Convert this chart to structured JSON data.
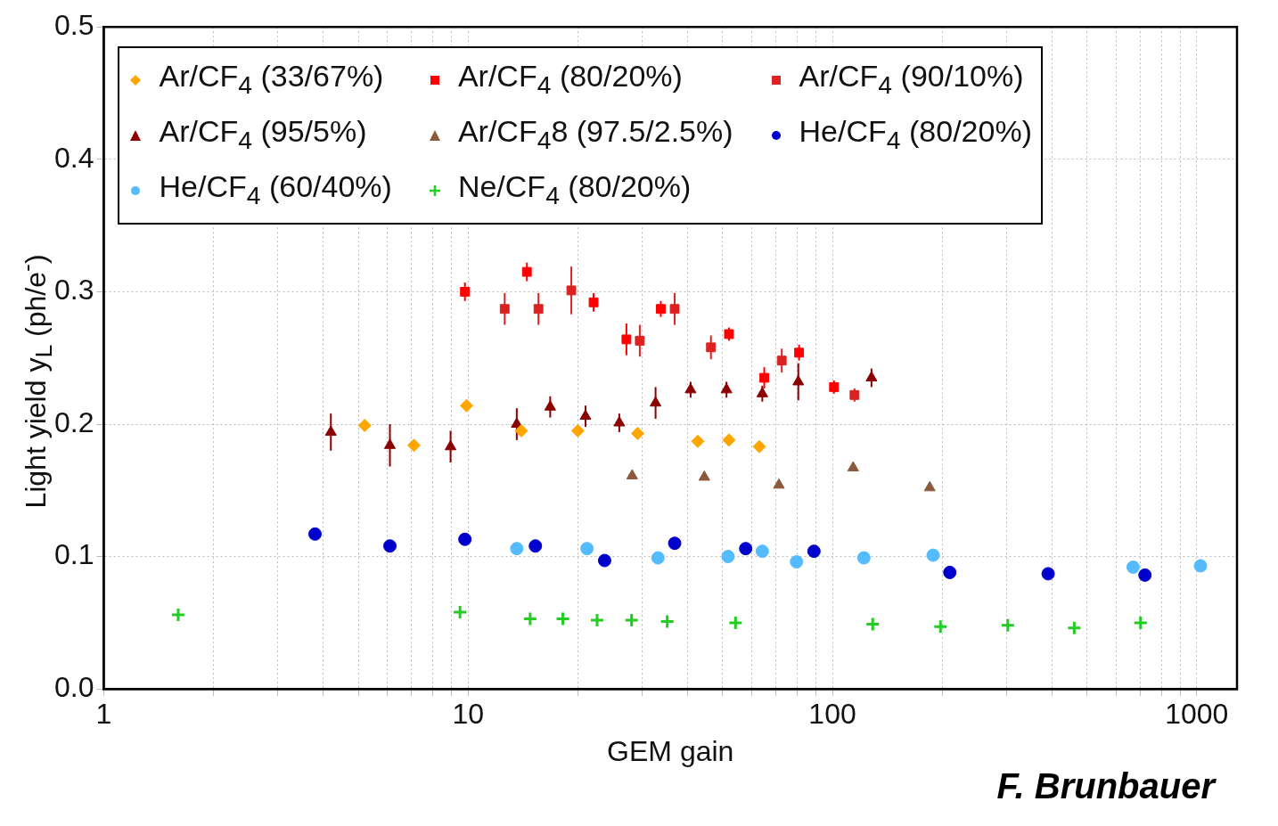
{
  "chart_data": {
    "type": "scatter",
    "xlabel": "GEM gain",
    "ylabel": "Light yield y$_{L}$ (ph/e$^{-}$)",
    "log": "x",
    "grid": true,
    "legend": "top",
    "xlim": [
      1,
      1290
    ],
    "xticks": [
      1,
      {
        "value": 2,
        "label": null
      },
      {
        "value": 3,
        "label": null
      },
      {
        "value": 4,
        "label": null
      },
      {
        "value": 5,
        "label": null
      },
      {
        "value": 6,
        "label": null
      },
      {
        "value": 7,
        "label": null
      },
      {
        "value": 8,
        "label": null
      },
      {
        "value": 9,
        "label": null
      },
      10,
      {
        "value": 20,
        "label": null
      },
      {
        "value": 30,
        "label": null
      },
      {
        "value": 40,
        "label": null
      },
      {
        "value": 50,
        "label": null
      },
      {
        "value": 60,
        "label": null
      },
      {
        "value": 70,
        "label": null
      },
      {
        "value": 80,
        "label": null
      },
      {
        "value": 90,
        "label": null
      },
      100,
      {
        "value": 200,
        "label": null
      },
      {
        "value": 300,
        "label": null
      },
      {
        "value": 400,
        "label": null
      },
      {
        "value": 500,
        "label": null
      },
      {
        "value": 600,
        "label": null
      },
      {
        "value": 700,
        "label": null
      },
      {
        "value": 800,
        "label": null
      },
      {
        "value": 900,
        "label": null
      },
      1000
    ],
    "ylim": [
      0,
      0.5
    ],
    "yticks": [
      {
        "value": 0,
        "label": "0.0"
      },
      0.1,
      0.2,
      0.3,
      0.4,
      0.5
    ],
    "annotations": [
      "F. Brunbauer"
    ],
    "series": [
      {
        "name": "Ar/CF$_{4}$ (33/67%)",
        "color": "#ffa500",
        "marker": "diamond",
        "x": [
          5.2,
          7.1,
          9.9,
          14.0,
          20,
          29.2,
          42.7,
          52,
          63
        ],
        "values": [
          0.199,
          0.184,
          0.214,
          0.195,
          0.195,
          0.193,
          0.187,
          0.188,
          0.183
        ]
      },
      {
        "name": "Ar/CF$_{4}$ (80/20%)",
        "color": "#ff0000",
        "marker": "square",
        "x": [
          9.8,
          14.5,
          22.1,
          27.2,
          33.8,
          52,
          65,
          81,
          101
        ],
        "values": [
          0.3,
          0.315,
          0.292,
          0.264,
          0.287,
          0.268,
          0.235,
          0.254,
          0.228
        ],
        "errors": [
          0.007,
          0.007,
          0.007,
          0.012,
          0.006,
          0.005,
          0.008,
          0.006,
          0.005
        ]
      },
      {
        "name": "Ar/CF$_{4}$ (90/10%)",
        "color": "#dd2222",
        "marker": "square",
        "x": [
          12.6,
          15.6,
          19.2,
          29.6,
          36.9,
          46.4,
          72.6,
          115
        ],
        "values": [
          0.287,
          0.287,
          0.301,
          0.263,
          0.287,
          0.258,
          0.248,
          0.222
        ],
        "errors": [
          0.012,
          0.012,
          0.018,
          0.012,
          0.012,
          0.009,
          0.009,
          0.005
        ]
      },
      {
        "name": "Ar/CF$_{4}$ (95/5%)",
        "color": "#8b0000",
        "marker": "triangle",
        "x": [
          4.2,
          6.1,
          8.95,
          13.6,
          16.8,
          21,
          26,
          32.7,
          40.8,
          51.2,
          64.2,
          80.6,
          128
        ],
        "values": [
          0.194,
          0.184,
          0.183,
          0.2,
          0.213,
          0.206,
          0.201,
          0.216,
          0.226,
          0.226,
          0.223,
          0.232,
          0.235
        ],
        "errors": [
          0.014,
          0.016,
          0.012,
          0.012,
          0.008,
          0.008,
          0.007,
          0.012,
          0.006,
          0.006,
          0.006,
          0.014,
          0.007
        ]
      },
      {
        "name": "Ar/CF$_{4}$8 (97.5/2.5%)",
        "color": "#8b5a3c",
        "marker": "triangle",
        "x": [
          28.2,
          44.5,
          71.3,
          114,
          185
        ],
        "values": [
          0.161,
          0.16,
          0.154,
          0.167,
          0.152
        ]
      },
      {
        "name": "He/CF$_{4}$ (80/20%)",
        "color": "#0000cc",
        "marker": "circle",
        "x": [
          3.8,
          6.1,
          9.8,
          15.3,
          23.7,
          36.9,
          57.8,
          89,
          210,
          391,
          721
        ],
        "values": [
          0.117,
          0.108,
          0.113,
          0.108,
          0.097,
          0.11,
          0.106,
          0.104,
          0.088,
          0.087,
          0.086
        ]
      },
      {
        "name": "He/CF$_{4}$ (60/40%)",
        "color": "#55bbff",
        "marker": "circle",
        "x": [
          13.6,
          21.2,
          33.2,
          51.7,
          64.2,
          79.7,
          122,
          189,
          669,
          1024
        ],
        "values": [
          0.106,
          0.106,
          0.099,
          0.1,
          0.104,
          0.096,
          0.099,
          0.101,
          0.092,
          0.093
        ]
      },
      {
        "name": "Ne/CF$_{4}$ (80/20%)",
        "color": "#22cc22",
        "marker": "cross",
        "x": [
          1.6,
          9.5,
          14.8,
          18.2,
          22.6,
          28.1,
          35.2,
          54.2,
          129,
          198,
          303,
          461,
          701
        ],
        "values": [
          0.056,
          0.058,
          0.053,
          0.053,
          0.052,
          0.052,
          0.051,
          0.05,
          0.049,
          0.047,
          0.048,
          0.046,
          0.05
        ]
      }
    ]
  }
}
